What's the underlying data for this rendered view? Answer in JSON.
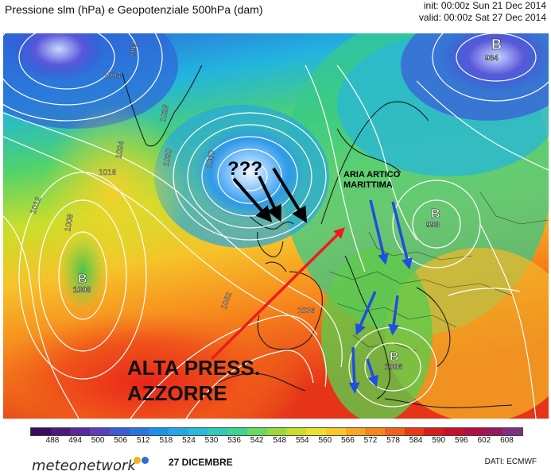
{
  "header": {
    "title": "Pressione slm (hPa) e Geopotenziale 500hPa (dam)",
    "init": "init: 00:00z Sun 21 Dec 2014",
    "valid": "valid: 00:00z Sat 27 Dec 2014"
  },
  "map": {
    "isobars": [
      {
        "label": "1004",
        "color": "#ffffff"
      },
      {
        "label": "1012",
        "color": "#ffffff"
      },
      {
        "label": "1016",
        "color": "#ffffff"
      },
      {
        "label": "1020",
        "color": "#ffffff"
      },
      {
        "label": "1024",
        "color": "#ffffff"
      },
      {
        "label": "1028",
        "color": "#ffffff"
      },
      {
        "label": "1032",
        "color": "#ffffff"
      },
      {
        "label": "1036",
        "color": "#ffffff"
      },
      {
        "label": "1008",
        "color": "#ffffff"
      },
      {
        "label": "1000",
        "color": "#ffffff"
      },
      {
        "label": "992",
        "color": "#ffffff"
      }
    ],
    "pressure_centers": [
      {
        "letter": "B",
        "value": "984"
      },
      {
        "letter": "B",
        "value": "998"
      },
      {
        "letter": "B",
        "value": "1008"
      },
      {
        "letter": "B",
        "value": "1006"
      }
    ],
    "annotations": {
      "question": "???",
      "arctic_line1": "ARIA ARTICO",
      "arctic_line2": "MARITTIMA",
      "azores_line1": "ALTA PRESS.",
      "azores_line2": "AZZORRE"
    },
    "arrow_colors": {
      "black": "#000000",
      "red": "#ee1c1c",
      "blue": "#1f4fe0"
    }
  },
  "colorbar": {
    "labels": [
      "488",
      "494",
      "500",
      "506",
      "512",
      "518",
      "524",
      "530",
      "536",
      "542",
      "548",
      "554",
      "560",
      "566",
      "572",
      "578",
      "584",
      "590",
      "596",
      "602",
      "608"
    ],
    "colors": [
      "#3a0a5c",
      "#4b1a7a",
      "#5a2a9a",
      "#5a3fb8",
      "#3e5ad0",
      "#2a74e0",
      "#1f90e8",
      "#22a8e6",
      "#26bcd8",
      "#2dcab8",
      "#3bd490",
      "#6ad85e",
      "#9ad83c",
      "#c8de2a",
      "#eee030",
      "#f8c82a",
      "#f9a722",
      "#f7851c",
      "#f2611a",
      "#e83a16",
      "#d91c1a",
      "#c8102a",
      "#b01040",
      "#981860",
      "#803080"
    ]
  },
  "footer": {
    "brand": "meteonetwork",
    "date": "27 DICEMBRE",
    "source": "DATI: ECMWF"
  }
}
